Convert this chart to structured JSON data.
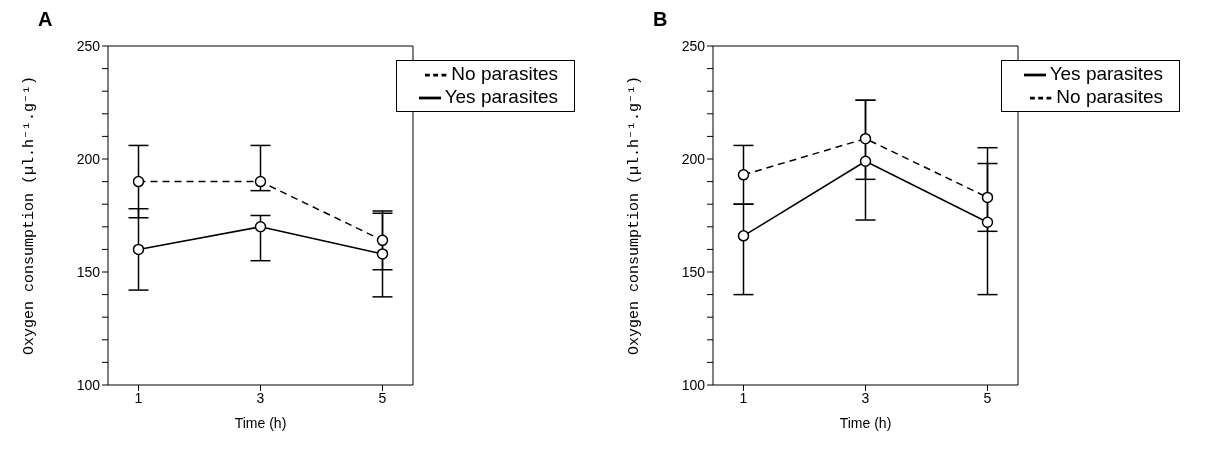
{
  "chart_data": [
    {
      "type": "line",
      "title": "A",
      "xlabel": "Time (h)",
      "ylabel": "Oxygen consumption (µl.h⁻¹.g⁻¹)",
      "x": [
        1,
        3,
        5
      ],
      "xlim": [
        0.5,
        5.5
      ],
      "xticks": [
        1,
        3,
        5
      ],
      "ylim": [
        100,
        250
      ],
      "yticks": [
        100,
        {
          "value": 110,
          "label": null
        },
        {
          "value": 120,
          "label": null
        },
        {
          "value": 130,
          "label": null
        },
        {
          "value": 140,
          "label": null
        },
        150,
        {
          "value": 160,
          "label": null
        },
        {
          "value": 170,
          "label": null
        },
        {
          "value": 180,
          "label": null
        },
        {
          "value": 190,
          "label": null
        },
        200,
        {
          "value": 210,
          "label": null
        },
        {
          "value": 220,
          "label": null
        },
        {
          "value": 230,
          "label": null
        },
        {
          "value": 240,
          "label": null
        },
        250
      ],
      "grid": false,
      "legend": "top right",
      "marker": "circle",
      "series": [
        {
          "name": "No parasites",
          "color": "#000000",
          "line_style": "dashed",
          "values": [
            190,
            190,
            164
          ],
          "errors": [
            [
              174,
              206
            ],
            [
              186,
              206
            ],
            [
              151,
              177
            ]
          ]
        },
        {
          "name": "Yes parasites",
          "color": "#000000",
          "line_style": "solid",
          "values": [
            160,
            170,
            158
          ],
          "errors": [
            [
              142,
              178
            ],
            [
              155,
              175
            ],
            [
              139,
              176
            ]
          ]
        }
      ]
    },
    {
      "type": "line",
      "title": "B",
      "xlabel": "Time (h)",
      "ylabel": "Oxygen consumption (µl.h⁻¹.g⁻¹)",
      "x": [
        1,
        3,
        5
      ],
      "xlim": [
        0.5,
        5.5
      ],
      "xticks": [
        1,
        3,
        5
      ],
      "ylim": [
        100,
        250
      ],
      "yticks": [
        100,
        {
          "value": 110,
          "label": null
        },
        {
          "value": 120,
          "label": null
        },
        {
          "value": 130,
          "label": null
        },
        {
          "value": 140,
          "label": null
        },
        150,
        {
          "value": 160,
          "label": null
        },
        {
          "value": 170,
          "label": null
        },
        {
          "value": 180,
          "label": null
        },
        {
          "value": 190,
          "label": null
        },
        200,
        {
          "value": 210,
          "label": null
        },
        {
          "value": 220,
          "label": null
        },
        {
          "value": 230,
          "label": null
        },
        {
          "value": 240,
          "label": null
        },
        250
      ],
      "grid": false,
      "legend": "top right",
      "marker": "circle",
      "series": [
        {
          "name": "Yes parasites",
          "color": "#000000",
          "line_style": "solid",
          "values": [
            166,
            199,
            172
          ],
          "errors": [
            [
              140,
              180
            ],
            [
              173,
              226
            ],
            [
              140,
              198
            ]
          ]
        },
        {
          "name": "No parasites",
          "color": "#000000",
          "line_style": "dashed",
          "values": [
            193,
            209,
            183
          ],
          "errors": [
            [
              180,
              206
            ],
            [
              191,
              226
            ],
            [
              168,
              205
            ]
          ]
        }
      ]
    }
  ]
}
